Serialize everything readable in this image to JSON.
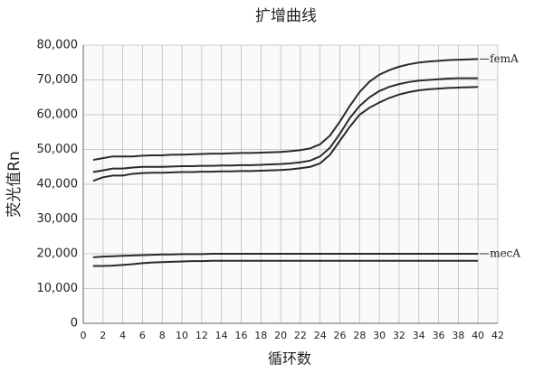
{
  "chart_data": {
    "type": "line",
    "title": "扩增曲线",
    "x_label": "循环数",
    "y_label": "荧光值Rn",
    "x": [
      1,
      2,
      3,
      4,
      5,
      6,
      7,
      8,
      9,
      10,
      11,
      12,
      13,
      14,
      15,
      16,
      17,
      18,
      19,
      20,
      21,
      22,
      23,
      24,
      25,
      26,
      27,
      28,
      29,
      30,
      31,
      32,
      33,
      34,
      35,
      36,
      37,
      38,
      39,
      40
    ],
    "series": [
      {
        "name": "femA",
        "color": "#2a2a2a",
        "values": [
          47000,
          47500,
          48000,
          48000,
          48000,
          48200,
          48300,
          48300,
          48500,
          48500,
          48600,
          48700,
          48800,
          48800,
          48900,
          49000,
          49000,
          49100,
          49200,
          49300,
          49500,
          49800,
          50300,
          51500,
          54000,
          58000,
          62500,
          66500,
          69500,
          71500,
          72800,
          73800,
          74500,
          75000,
          75300,
          75500,
          75700,
          75800,
          75900,
          76000
        ]
      },
      {
        "color": "#2a2a2a",
        "values": [
          43500,
          44000,
          44500,
          44500,
          44800,
          45000,
          45000,
          45000,
          45100,
          45200,
          45200,
          45300,
          45300,
          45400,
          45400,
          45500,
          45500,
          45600,
          45700,
          45800,
          46000,
          46300,
          46800,
          48000,
          50500,
          54500,
          59000,
          62500,
          65000,
          66800,
          68000,
          68800,
          69400,
          69800,
          70000,
          70200,
          70400,
          70500,
          70500,
          70500
        ]
      },
      {
        "color": "#2a2a2a",
        "values": [
          41000,
          42000,
          42500,
          42500,
          43000,
          43200,
          43300,
          43300,
          43400,
          43500,
          43500,
          43600,
          43600,
          43700,
          43700,
          43800,
          43800,
          43900,
          44000,
          44100,
          44300,
          44600,
          45000,
          46000,
          48500,
          52500,
          56500,
          60000,
          62000,
          63500,
          64800,
          65800,
          66500,
          67000,
          67300,
          67500,
          67700,
          67800,
          67900,
          68000
        ]
      },
      {
        "name": "mecA",
        "color": "#2a2a2a",
        "values": [
          19000,
          19200,
          19300,
          19400,
          19500,
          19600,
          19700,
          19800,
          19800,
          19900,
          19900,
          19900,
          20000,
          20000,
          20000,
          20000,
          20000,
          20000,
          20000,
          20000,
          20000,
          20000,
          20000,
          20000,
          20000,
          20000,
          20000,
          20000,
          20000,
          20000,
          20000,
          20000,
          20000,
          20000,
          20000,
          20000,
          20000,
          20000,
          20000,
          20000
        ]
      },
      {
        "color": "#2a2a2a",
        "values": [
          16500,
          16500,
          16600,
          16800,
          17000,
          17300,
          17500,
          17600,
          17700,
          17800,
          17900,
          17900,
          18000,
          18000,
          18000,
          18000,
          18000,
          18000,
          18000,
          18000,
          18000,
          18000,
          18000,
          18000,
          18000,
          18000,
          18000,
          18000,
          18000,
          18000,
          18000,
          18000,
          18000,
          18000,
          18000,
          18000,
          18000,
          18000,
          18000,
          18000
        ]
      }
    ],
    "xlim": [
      0,
      42
    ],
    "xticks": [
      0,
      2,
      4,
      6,
      8,
      10,
      12,
      14,
      16,
      18,
      20,
      22,
      24,
      26,
      28,
      30,
      32,
      34,
      36,
      38,
      40,
      42
    ],
    "ylim": [
      0,
      80000
    ],
    "yticks": [
      0,
      {
        "value": 10000,
        "label": "10,000"
      },
      {
        "value": 20000,
        "label": "20,000"
      },
      {
        "value": 30000,
        "label": "30,000"
      },
      {
        "value": 40000,
        "label": "40,000"
      },
      {
        "value": 50000,
        "label": "50,000"
      },
      {
        "value": 60000,
        "label": "60,000"
      },
      {
        "value": 70000,
        "label": "70,000"
      },
      {
        "value": 80000,
        "label": "80,000"
      }
    ],
    "grid": true
  }
}
